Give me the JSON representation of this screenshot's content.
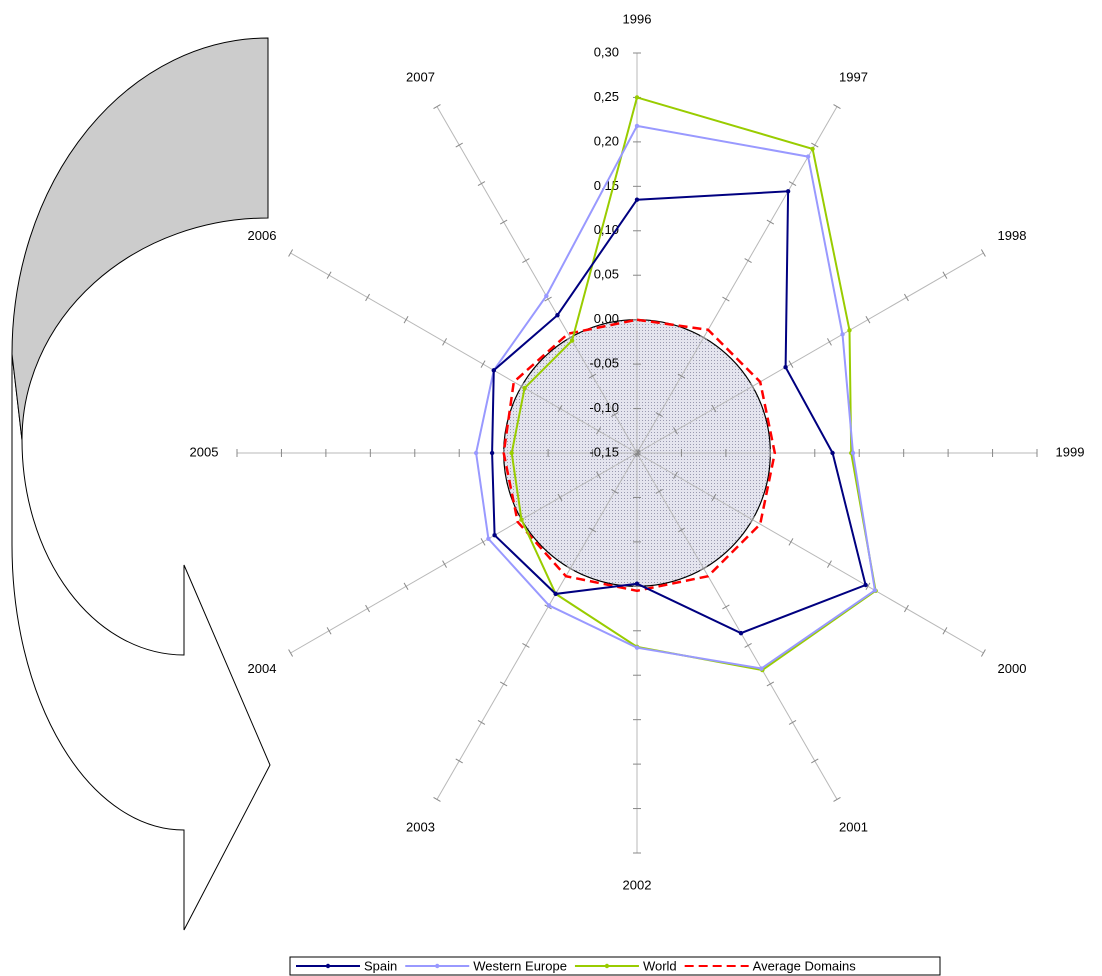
{
  "chart_data": {
    "type": "radar",
    "categories": [
      "1996",
      "1997",
      "1998",
      "1999",
      "2000",
      "2001",
      "2002",
      "2003",
      "2004",
      "2005",
      "2006",
      "2007"
    ],
    "ylim": [
      -0.15,
      0.3
    ],
    "yticks": [
      {
        "value": -0.15,
        "label": "-0,15"
      },
      {
        "value": -0.1,
        "label": "-0,10"
      },
      {
        "value": -0.05,
        "label": "-0,05"
      },
      {
        "value": 0,
        "label": "0,00"
      },
      {
        "value": 0.05,
        "label": "0,05"
      },
      {
        "value": 0.1,
        "label": "0,10"
      },
      {
        "value": 0.15,
        "label": "0,15"
      },
      {
        "value": 0.2,
        "label": "0,20"
      },
      {
        "value": 0.25,
        "label": "0,25"
      },
      {
        "value": 0.3,
        "label": "0,30"
      }
    ],
    "series": [
      {
        "name": "Spain",
        "color": "#000080",
        "values": [
          0.135,
          0.19,
          0.043,
          0.07,
          0.147,
          0.084,
          -0.003,
          0.033,
          0.035,
          0.013,
          0.036,
          0.029
        ]
      },
      {
        "name": "Western Europe",
        "color": "#9999ff",
        "values": [
          0.218,
          0.235,
          0.117,
          0.093,
          0.159,
          0.13,
          0.069,
          0.048,
          0.043,
          0.031,
          0.036,
          0.054
        ]
      },
      {
        "name": "World",
        "color": "#99cc00",
        "values": [
          0.25,
          0.245,
          0.126,
          0.091,
          0.16,
          0.132,
          0.068,
          0.033,
          0.0,
          -0.009,
          -0.004,
          -0.004
        ]
      },
      {
        "name": "Average Domains",
        "color": "#ff0000",
        "dashed": true,
        "values": [
          0.0,
          0.01,
          0.01,
          0.005,
          0.01,
          0.01,
          0.005,
          0.01,
          0.005,
          0.0,
          0.01,
          0.005
        ]
      }
    ]
  }
}
